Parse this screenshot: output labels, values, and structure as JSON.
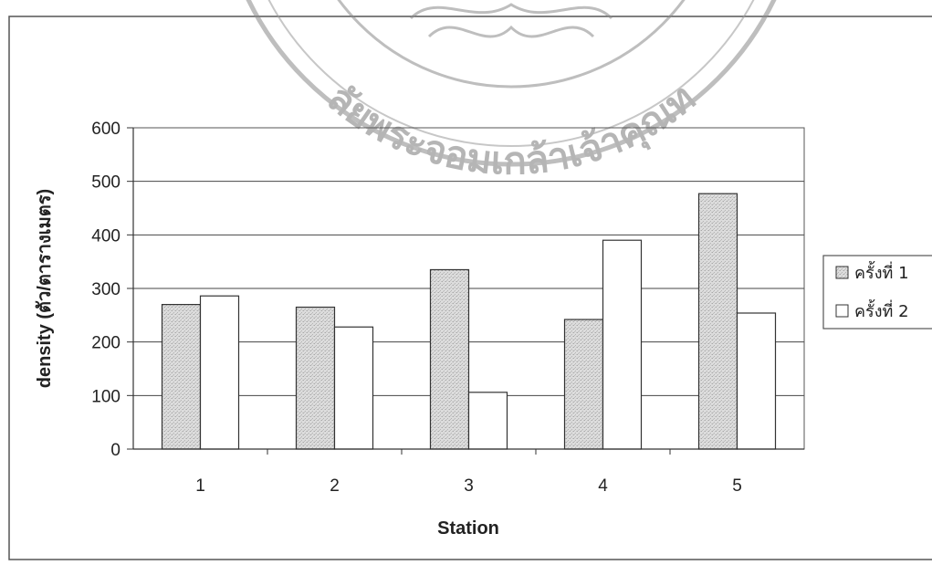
{
  "seal": {
    "text": "ลัยพระจอมเกล้าเจ้าคุณท"
  },
  "chart_data": {
    "type": "bar",
    "title": "",
    "xlabel": "Station",
    "ylabel": "density (ตัว/ตารางเมตร)",
    "categories": [
      "1",
      "2",
      "3",
      "4",
      "5"
    ],
    "series": [
      {
        "name": "ครั้งที่ 1",
        "values": [
          270,
          265,
          335,
          242,
          477
        ],
        "fill": "#d3d3d3"
      },
      {
        "name": "ครั้งที่ 2",
        "values": [
          286,
          228,
          106,
          390,
          254
        ],
        "fill": "#ffffff"
      }
    ],
    "ylim": [
      0,
      600
    ],
    "yticks": [
      "0",
      "100",
      "200",
      "300",
      "400",
      "500",
      "600"
    ],
    "grid": true,
    "legend": "right"
  }
}
